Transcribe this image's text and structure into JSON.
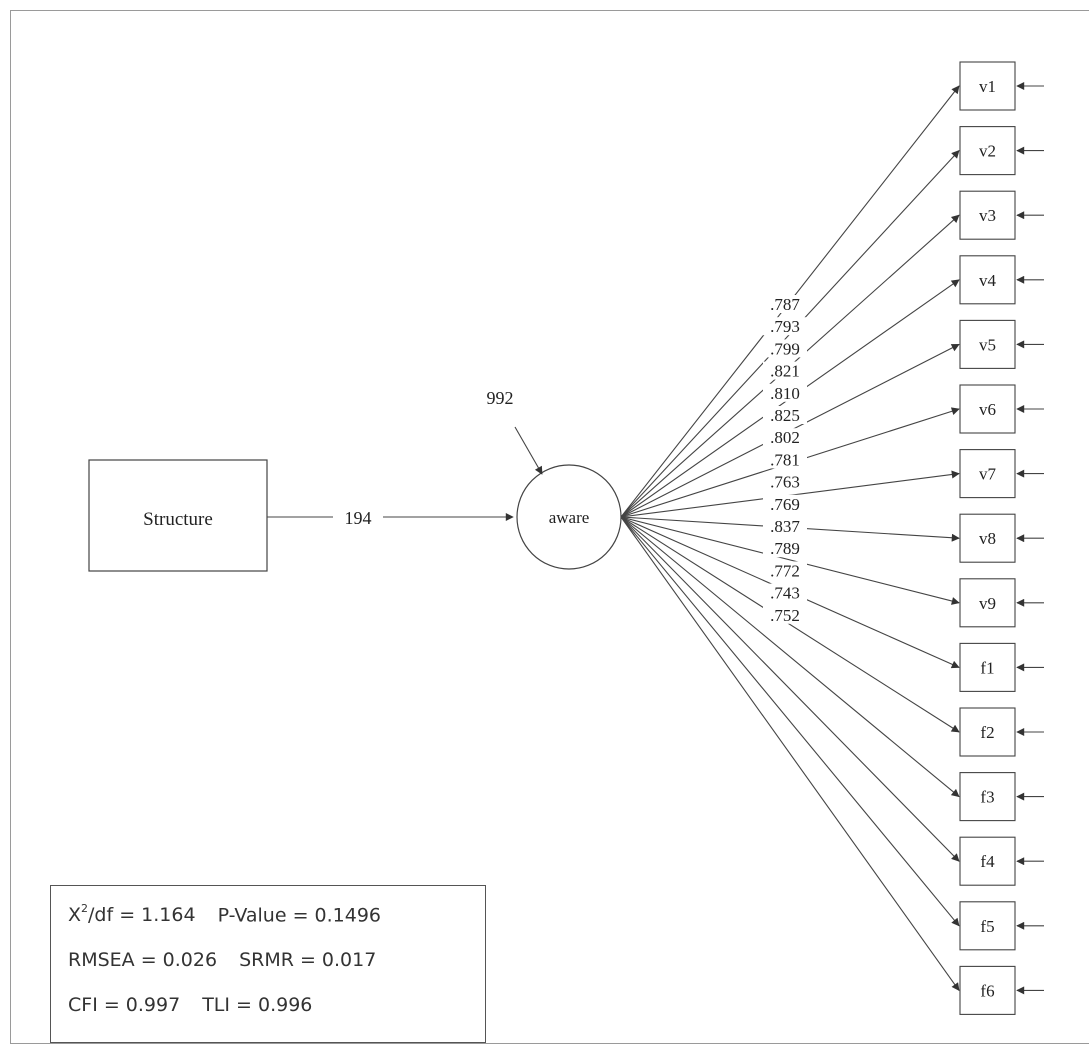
{
  "diagram": {
    "exogenous": {
      "label": "Structure"
    },
    "latent": {
      "label": "aware",
      "residual": "992"
    },
    "path": {
      "label": "194"
    },
    "indicators": [
      {
        "label": "v1",
        "loading": ".787"
      },
      {
        "label": "v2",
        "loading": ".793"
      },
      {
        "label": "v3",
        "loading": ".799"
      },
      {
        "label": "v4",
        "loading": ".821"
      },
      {
        "label": "v5",
        "loading": ".810"
      },
      {
        "label": "v6",
        "loading": ".825"
      },
      {
        "label": "v7",
        "loading": ".802"
      },
      {
        "label": "v8",
        "loading": ".781"
      },
      {
        "label": "v9",
        "loading": ".763"
      },
      {
        "label": "f1",
        "loading": ".769"
      },
      {
        "label": "f2",
        "loading": ".837"
      },
      {
        "label": "f3",
        "loading": ".789"
      },
      {
        "label": "f4",
        "loading": ".772"
      },
      {
        "label": "f5",
        "loading": ".743"
      },
      {
        "label": "f6",
        "loading": ".752"
      }
    ]
  },
  "fit": {
    "chi_prefix": "X",
    "chi_sup": "2",
    "chi_suffix": "/df = 1.164",
    "p_value": "P-Value = 0.1496",
    "rmsea": "RMSEA = 0.026",
    "srmr": "SRMR = 0.017",
    "cfi": "CFI = 0.997",
    "tli": "TLI = 0.996"
  }
}
